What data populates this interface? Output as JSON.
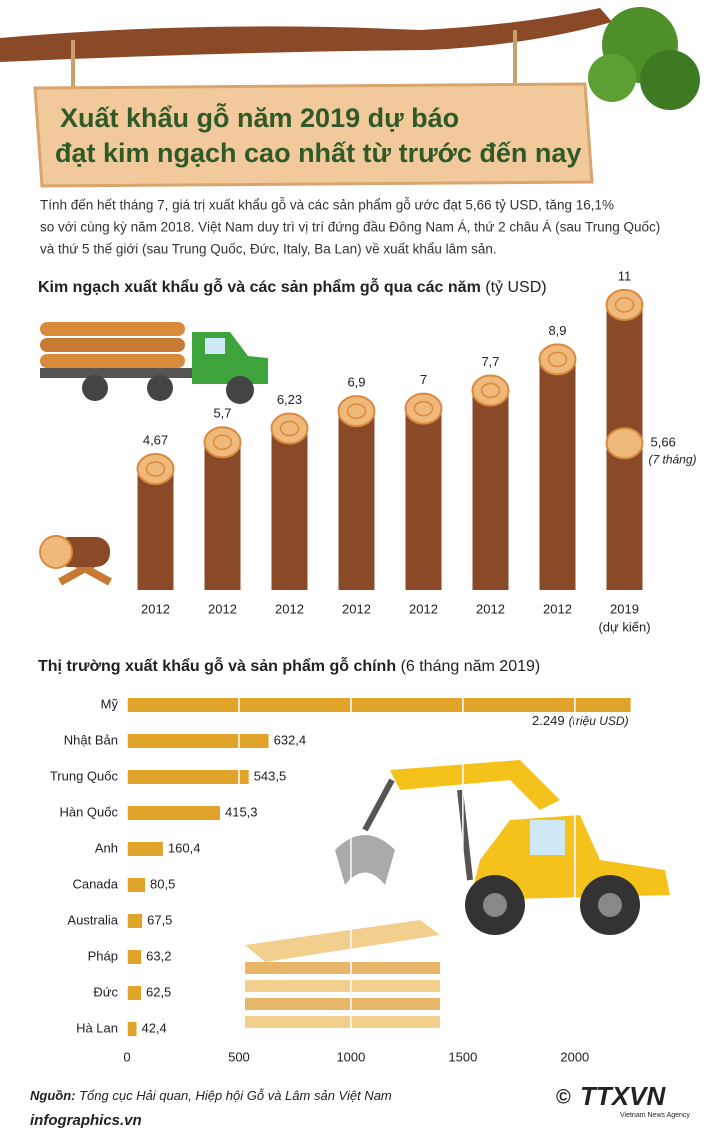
{
  "header": {
    "title_lines": [
      "Xuất khẩu gỗ năm 2019 dự báo",
      "đạt kim ngạch cao nhất từ trước đến nay"
    ]
  },
  "intro_lines": [
    "Tính đến hết tháng 7, giá trị xuất khẩu gỗ và các sản phẩm gỗ ước đạt 5,66 tỷ USD, tăng 16,1%",
    "so với cùng kỳ năm 2018. Việt Nam duy trì vị trí đứng đầu Đông Nam Á, thứ 2 châu Á (sau Trung Quốc)",
    "và thứ 5 thế giới (sau Trung Quốc, Đức, Italy, Ba Lan) về xuất khẩu lâm sản."
  ],
  "chart_data": [
    {
      "type": "column",
      "title": "Kim ngạch xuất khẩu gỗ và các sản phẩm gỗ qua các năm",
      "subtitle": "(tỷ USD)",
      "categories": [
        "2012",
        "2012",
        "2012",
        "2012",
        "2012",
        "2012",
        "2012",
        "2019"
      ],
      "category_notes": [
        null,
        null,
        null,
        null,
        null,
        null,
        null,
        "(dự kiến)"
      ],
      "values": [
        4.67,
        5.7,
        6.23,
        6.9,
        7,
        7.7,
        8.9,
        11
      ],
      "value_labels": [
        "4,67",
        "5,7",
        "6,23",
        "6,9",
        "7",
        "7,7",
        "8,9",
        "11"
      ],
      "partial": {
        "value": 5.66,
        "label": "5,66",
        "note": "(7 tháng)"
      },
      "ylim": [
        0,
        12
      ],
      "color": "#8a4a28"
    },
    {
      "type": "hbar",
      "title": "Thị trường xuất khẩu gỗ và sản phẩm gỗ chính",
      "subtitle": "(6 tháng năm 2019)",
      "categories": [
        "Mỹ",
        "Nhật Bản",
        "Trung Quốc",
        "Hàn Quốc",
        "Anh",
        "Canada",
        "Australia",
        "Pháp",
        "Đức",
        "Hà Lan"
      ],
      "values": [
        2249,
        632.4,
        543.5,
        415.3,
        160.4,
        80.5,
        67.5,
        63.2,
        62.5,
        42.4
      ],
      "value_labels": [
        "2.249",
        "632,4",
        "543,5",
        "415,3",
        "160,4",
        "80,5",
        "67,5",
        "63,2",
        "62,5",
        "42,4"
      ],
      "unit": "(triệu USD)",
      "xlim": [
        0,
        2300
      ],
      "xticks": [
        0,
        500,
        1000,
        1500,
        2000
      ],
      "grid": true,
      "color": "#e0a42a"
    }
  ],
  "source": {
    "label": "Nguồn:",
    "text": "Tổng cục Hải quan, Hiệp hội Gỗ và Lâm sản Việt Nam"
  },
  "footer": {
    "site": "infographics.vn",
    "logo": "TTXVN",
    "logo_sub": "Vietnam News Agency"
  }
}
